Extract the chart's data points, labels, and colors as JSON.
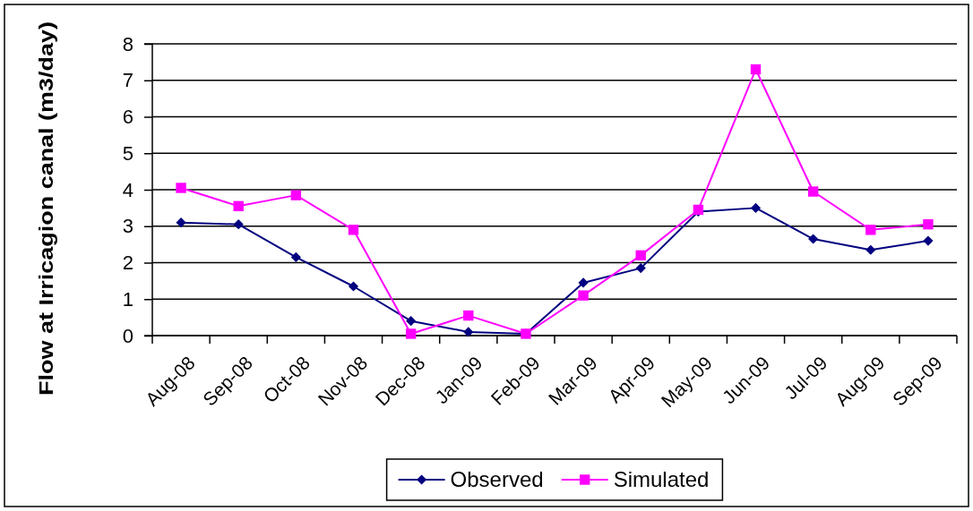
{
  "chart_data": {
    "type": "line",
    "ylabel": "Flow at Irricagion canal (m3/day)",
    "categories": [
      "Aug-08",
      "Sep-08",
      "Oct-08",
      "Nov-08",
      "Dec-08",
      "Jan-09",
      "Feb-09",
      "Mar-09",
      "Apr-09",
      "May-09",
      "Jun-09",
      "Jul-09",
      "Aug-09",
      "Sep-09"
    ],
    "series": [
      {
        "name": "Observed",
        "color": "#000080",
        "marker": "diamond",
        "values": [
          3.1,
          3.05,
          2.15,
          1.35,
          0.4,
          0.1,
          0.05,
          1.45,
          1.85,
          3.4,
          3.5,
          2.65,
          2.35,
          2.6
        ]
      },
      {
        "name": "Simulated",
        "color": "#ff00ff",
        "marker": "square",
        "values": [
          4.05,
          3.55,
          3.85,
          2.9,
          0.05,
          0.55,
          0.05,
          1.1,
          2.2,
          3.45,
          7.3,
          3.95,
          2.9,
          3.05
        ]
      }
    ],
    "ylim": [
      0,
      8
    ],
    "yticks": [
      0,
      1,
      2,
      3,
      4,
      5,
      6,
      7,
      8
    ],
    "grid": "y",
    "legend": "bottom",
    "line_style": "solid"
  }
}
